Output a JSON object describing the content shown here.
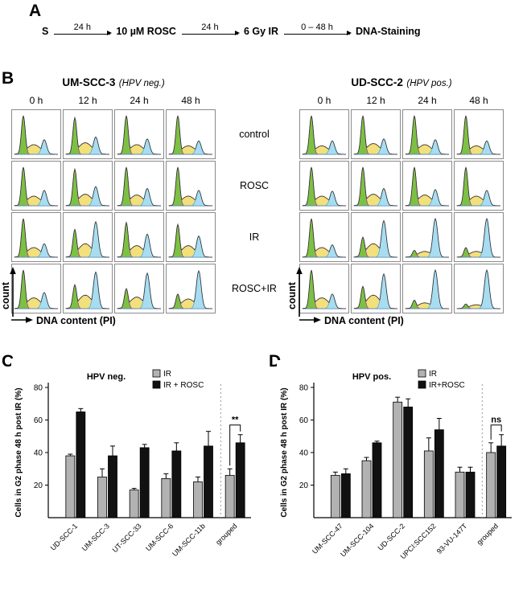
{
  "panelA": {
    "label": "A",
    "timeline": {
      "start": "S",
      "steps": [
        {
          "arrow_label": "24 h",
          "target": "10 µM ROSC"
        },
        {
          "arrow_label": "24 h",
          "target": "6 Gy IR"
        },
        {
          "arrow_label": "0 – 48 h",
          "target": "DNA-Staining"
        }
      ]
    }
  },
  "panelB": {
    "label": "B",
    "timepoints": [
      "0 h",
      "12 h",
      "24 h",
      "48 h"
    ],
    "row_labels": [
      "control",
      "ROSC",
      "IR",
      "ROSC+IR"
    ],
    "count_axis_label": "count",
    "dna_axis_label": "DNA content (PI)",
    "colors": {
      "g1_fill": "#7cc143",
      "g1_stroke": "#a0328c",
      "s_fill": "#f1e07c",
      "s_stroke": "#cc4433",
      "g2_fill": "#a8ddf1",
      "g2_stroke": "#4a9fc6",
      "outline": "#333333"
    },
    "blocks": [
      {
        "title": "UM-SCC-3",
        "subtitle": "(HPV neg.)",
        "histograms": [
          [
            [
              1.0,
              0.25,
              0.38
            ],
            [
              0.95,
              0.3,
              0.45
            ],
            [
              1.0,
              0.25,
              0.4
            ],
            [
              1.0,
              0.22,
              0.35
            ]
          ],
          [
            [
              1.0,
              0.25,
              0.4
            ],
            [
              0.95,
              0.3,
              0.5
            ],
            [
              1.0,
              0.28,
              0.45
            ],
            [
              1.0,
              0.25,
              0.4
            ]
          ],
          [
            [
              1.0,
              0.25,
              0.35
            ],
            [
              0.72,
              0.35,
              0.92
            ],
            [
              0.9,
              0.3,
              0.6
            ],
            [
              0.85,
              0.3,
              0.55
            ]
          ],
          [
            [
              1.0,
              0.28,
              0.42
            ],
            [
              0.62,
              0.35,
              0.95
            ],
            [
              0.52,
              0.3,
              0.92
            ],
            [
              0.38,
              0.25,
              0.98
            ]
          ]
        ]
      },
      {
        "title": "UD-SCC-2",
        "subtitle": "(HPV pos.)",
        "histograms": [
          [
            [
              1.0,
              0.22,
              0.35
            ],
            [
              1.0,
              0.28,
              0.4
            ],
            [
              1.0,
              0.25,
              0.38
            ],
            [
              1.0,
              0.22,
              0.35
            ]
          ],
          [
            [
              1.0,
              0.25,
              0.38
            ],
            [
              1.0,
              0.3,
              0.45
            ],
            [
              1.0,
              0.28,
              0.42
            ],
            [
              1.0,
              0.25,
              0.4
            ]
          ],
          [
            [
              1.0,
              0.25,
              0.32
            ],
            [
              0.52,
              0.35,
              0.95
            ],
            [
              0.18,
              0.15,
              1.0
            ],
            [
              0.25,
              0.15,
              1.0
            ]
          ],
          [
            [
              1.0,
              0.28,
              0.38
            ],
            [
              0.58,
              0.35,
              0.9
            ],
            [
              0.22,
              0.15,
              1.0
            ],
            [
              0.12,
              0.1,
              1.0
            ]
          ]
        ]
      }
    ]
  },
  "chart_data": [
    {
      "type": "bar",
      "panel_label": "C",
      "title": "HPV neg.",
      "ylabel": "Cells in G2 phase 48 h post IR (%)",
      "ylim": [
        0,
        80
      ],
      "yticks": [
        20,
        40,
        60,
        80
      ],
      "categories": [
        "UD-SCC-1",
        "UM-SCC-3",
        "UT-SCC-33",
        "UM-SCC-6",
        "UM-SCC-11b",
        "grouped"
      ],
      "series": [
        {
          "name": "IR",
          "color": "#b2b2b2",
          "values": [
            38,
            25,
            17,
            24,
            22,
            26
          ],
          "errors": [
            1,
            5,
            1,
            3,
            3,
            4
          ]
        },
        {
          "name": "IR + ROSC",
          "color": "#111111",
          "values": [
            65,
            38,
            43,
            41,
            44,
            46
          ],
          "errors": [
            2,
            6,
            2,
            5,
            9,
            5
          ]
        }
      ],
      "separator_before": "grouped",
      "significance": {
        "category": "grouped",
        "label": "**"
      },
      "legend_position": "top-right",
      "grid": false
    },
    {
      "type": "bar",
      "panel_label": "D",
      "title": "HPV pos.",
      "ylabel": "Cells in G2 phase 48 h post IR (%)",
      "ylim": [
        0,
        80
      ],
      "yticks": [
        20,
        40,
        60,
        80
      ],
      "categories": [
        "UM-SCC-47",
        "UM-SCC-104",
        "UD-SCC-2",
        "UPCI:SCC152",
        "93-VU-147T",
        "grouped"
      ],
      "series": [
        {
          "name": "IR",
          "color": "#b2b2b2",
          "values": [
            26,
            35,
            71,
            41,
            28,
            40
          ],
          "errors": [
            2,
            2,
            3,
            8,
            3,
            6
          ]
        },
        {
          "name": "IR+ROSC",
          "color": "#111111",
          "values": [
            27,
            46,
            68,
            54,
            28,
            44
          ],
          "errors": [
            3,
            1,
            5,
            7,
            3,
            7
          ]
        }
      ],
      "separator_before": "grouped",
      "significance": {
        "category": "grouped",
        "label": "ns"
      },
      "legend_position": "top-right",
      "grid": false
    }
  ]
}
